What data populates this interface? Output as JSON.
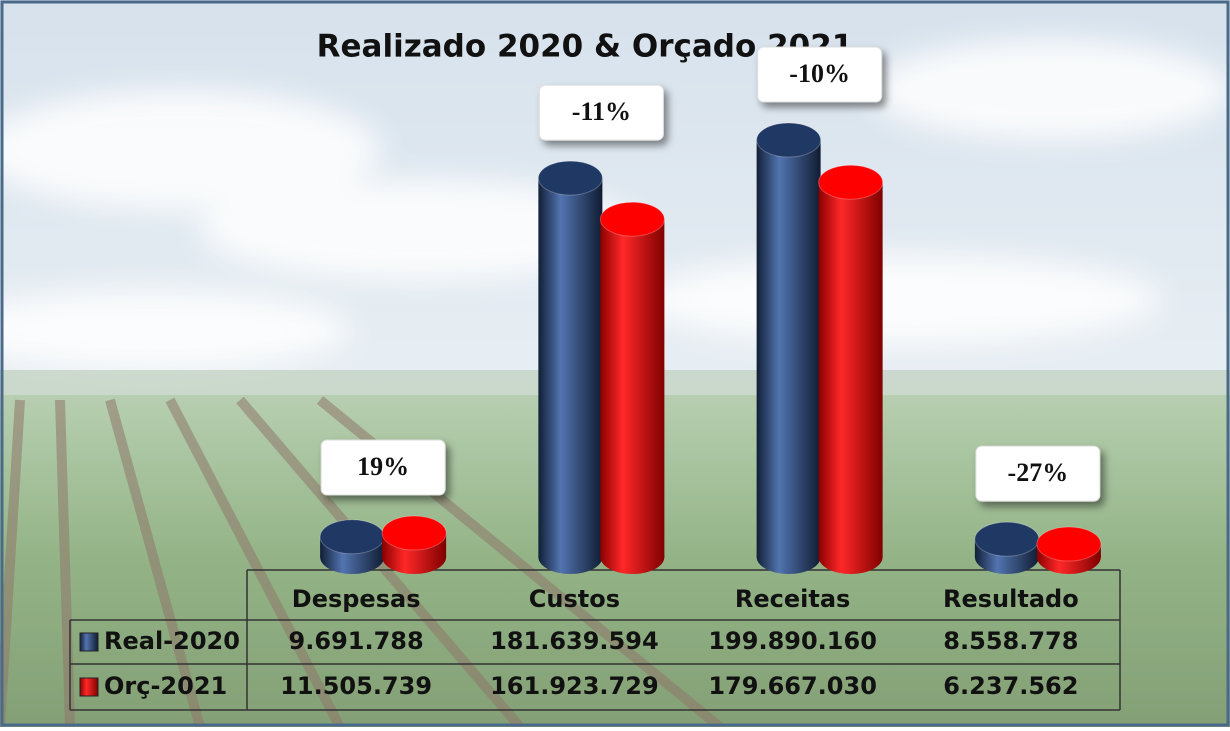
{
  "chart_data": {
    "type": "bar3d",
    "title": "Realizado 2020 & Orçado 2021",
    "categories": [
      "Despesas",
      "Custos",
      "Receitas",
      "Resultado"
    ],
    "series": [
      {
        "name": "Real-2020",
        "color": "#1f3864",
        "values": [
          9691788,
          181639594,
          199890160,
          8558778
        ],
        "value_labels": [
          "9.691.788",
          "181.639.594",
          "199.890.160",
          "8.558.778"
        ]
      },
      {
        "name": "Orç-2021",
        "color": "#ff0000",
        "values": [
          11505739,
          161923729,
          179667030,
          6237562
        ],
        "value_labels": [
          "11.505.739",
          "161.923.729",
          "179.667.030",
          "6.237.562"
        ]
      }
    ],
    "annotations": [
      "19%",
      "-11%",
      "-10%",
      "-27%"
    ]
  }
}
